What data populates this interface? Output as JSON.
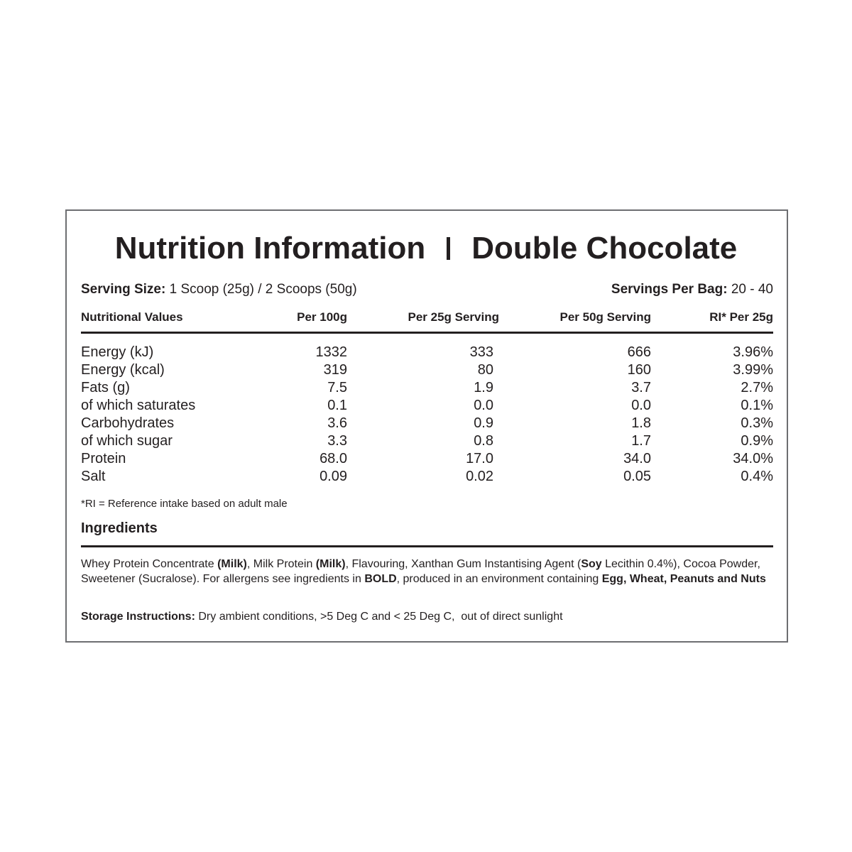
{
  "header": {
    "title_left": "Nutrition Information",
    "title_right": "Double Chocolate"
  },
  "serving": {
    "size_label": "Serving Size:",
    "size_value": "1 Scoop (25g) / 2 Scoops (50g)",
    "per_bag_label": "Servings Per Bag:",
    "per_bag_value": "20 - 40"
  },
  "table": {
    "columns": [
      "Nutritional Values",
      "Per 100g",
      "Per 25g Serving",
      "Per 50g Serving",
      "RI* Per 25g"
    ],
    "rows": [
      [
        "Energy (kJ)",
        "1332",
        "333",
        "666",
        "3.96%"
      ],
      [
        "Energy (kcal)",
        "319",
        "80",
        "160",
        "3.99%"
      ],
      [
        "Fats (g)",
        "7.5",
        "1.9",
        "3.7",
        "2.7%"
      ],
      [
        "of which saturates",
        "0.1",
        "0.0",
        "0.0",
        "0.1%"
      ],
      [
        "Carbohydrates",
        "3.6",
        "0.9",
        "1.8",
        "0.3%"
      ],
      [
        "of which sugar",
        "3.3",
        "0.8",
        "1.7",
        "0.9%"
      ],
      [
        "Protein",
        "68.0",
        "17.0",
        "34.0",
        "34.0%"
      ],
      [
        "Salt",
        "0.09",
        "0.02",
        "0.05",
        "0.4%"
      ]
    ]
  },
  "footnote": "*RI = Reference intake based on adult male",
  "ingredients": {
    "heading": "Ingredients",
    "segments": [
      {
        "text": "Whey Protein Concentrate ",
        "bold": false
      },
      {
        "text": "(Milk)",
        "bold": true
      },
      {
        "text": ", Milk Protein ",
        "bold": false
      },
      {
        "text": "(Milk)",
        "bold": true
      },
      {
        "text": ", Flavouring, Xanthan Gum Instantising Agent (",
        "bold": false
      },
      {
        "text": "Soy",
        "bold": true
      },
      {
        "text": " Lecithin 0.4%), Cocoa Powder, Sweetener (Sucralose). For allergens see ingredients in ",
        "bold": false
      },
      {
        "text": "BOLD",
        "bold": true
      },
      {
        "text": ", produced in an environment containing ",
        "bold": false
      },
      {
        "text": "Egg, Wheat, Peanuts and Nuts",
        "bold": true
      }
    ]
  },
  "storage": {
    "label": "Storage Instructions:",
    "text": "Dry ambient conditions, >5 Deg C and < 25 Deg C,  out of direct sunlight"
  }
}
